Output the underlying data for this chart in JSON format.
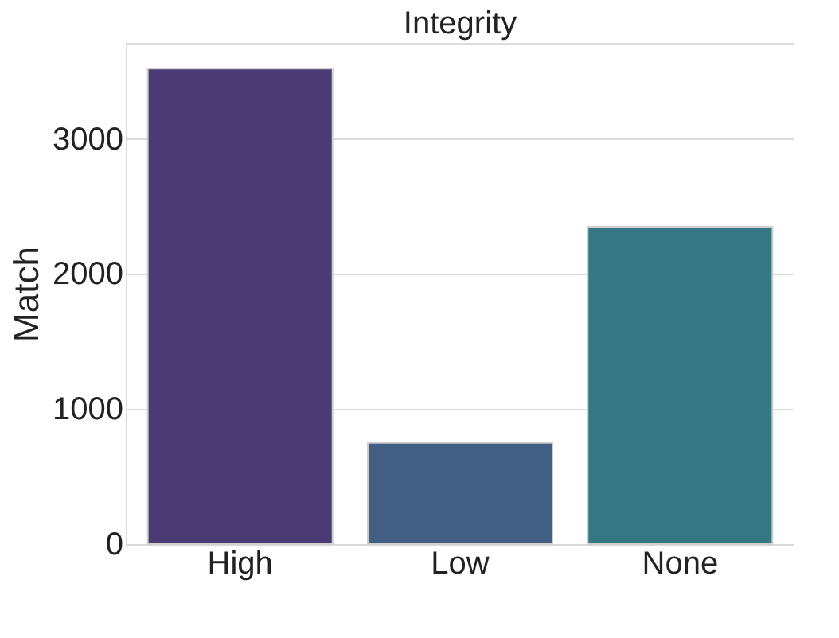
{
  "chart_data": {
    "type": "bar",
    "title": "Integrity",
    "ylabel": "Match",
    "categories": [
      "High",
      "Low",
      "None"
    ],
    "values": [
      3520,
      750,
      2350
    ],
    "colors": [
      "#4a3b73",
      "#425e82",
      "#357782"
    ],
    "ylim": [
      0,
      3710
    ],
    "yticks": [
      0,
      1000,
      2000,
      3000
    ],
    "grid": "y"
  }
}
